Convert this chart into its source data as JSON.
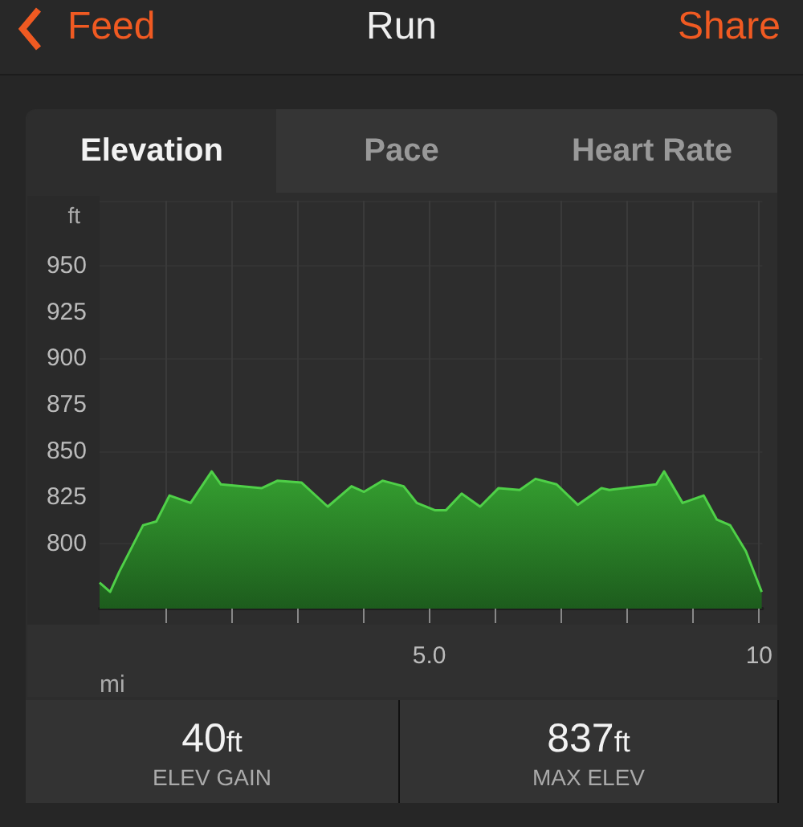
{
  "chart_data": {
    "type": "area",
    "title": "Run",
    "xlabel": "mi",
    "ylabel": "ft",
    "annotations": [
      "Feed",
      "Share",
      "Elevation",
      "Pace",
      "Heart Rate",
      "40ft",
      "ELEV GAIN",
      "837ft",
      "MAX ELEV"
    ],
    "series": [
      {
        "color": "#35a030",
        "x": [
          0,
          0.16,
          0.3,
          0.66,
          0.86,
          1.06,
          1.38,
          1.7,
          1.84,
          2.46,
          2.7,
          3.06,
          3.46,
          3.82,
          4.01,
          4.29,
          4.61,
          4.81,
          5.09,
          5.25,
          5.49,
          5.77,
          6.05,
          6.37,
          6.61,
          6.93,
          7.25,
          7.61,
          7.73,
          8.44,
          8.56,
          8.84,
          9.16,
          9.36,
          9.56,
          9.8,
          10.04
        ],
        "values": [
          779,
          774,
          785,
          810,
          812,
          826,
          822,
          839,
          832,
          830,
          834,
          833,
          820,
          831,
          828,
          834,
          831,
          822,
          818,
          818,
          827,
          820,
          830,
          829,
          835,
          832,
          821,
          830,
          829,
          832,
          839,
          822,
          826,
          813,
          810,
          796,
          774
        ]
      }
    ],
    "xlim": [
      0,
      10.05
    ],
    "ylim": [
      765,
      985
    ],
    "xticks": [
      {
        "value": 1,
        "label": null
      },
      {
        "value": 2,
        "label": null
      },
      {
        "value": 3,
        "label": null
      },
      {
        "value": 4,
        "label": null
      },
      {
        "value": 5,
        "label": "5.0"
      },
      {
        "value": 6,
        "label": null
      },
      {
        "value": 7,
        "label": null
      },
      {
        "value": 8,
        "label": null
      },
      {
        "value": 9,
        "label": null
      },
      10
    ],
    "yticks": [
      800,
      825,
      850,
      875,
      900,
      925,
      950
    ],
    "grid": true,
    "marker": "none"
  }
}
